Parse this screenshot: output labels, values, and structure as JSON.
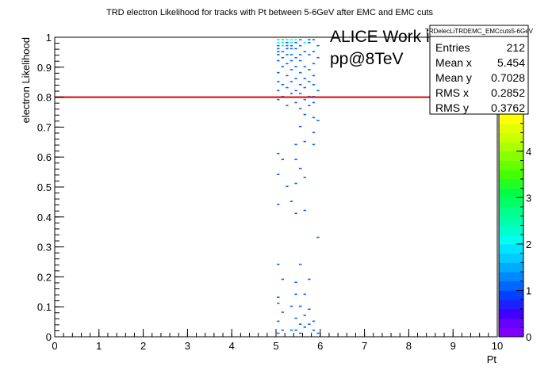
{
  "chart_data": {
    "type": "heatmap",
    "title": "TRD electron Likelihood for tracks with Pt between 5-6GeV after EMC and EMC cuts",
    "xlabel": "Pt",
    "ylabel": "electron Likelihood",
    "xlim": [
      0,
      10
    ],
    "ylim": [
      0,
      1
    ],
    "x_ticks": [
      "0",
      "1",
      "2",
      "3",
      "4",
      "5",
      "6",
      "7",
      "8",
      "9",
      "10"
    ],
    "y_ticks": [
      "0",
      "0.1",
      "0.2",
      "0.3",
      "0.4",
      "0.5",
      "0.6",
      "0.7",
      "0.8",
      "0.9",
      "1"
    ],
    "z_ticks": [
      "0",
      "1",
      "2",
      "3",
      "4"
    ],
    "zlim": [
      0,
      4.8
    ],
    "cut_line_y": 0.8,
    "cut_line_color": "#e00000",
    "annotation": {
      "line1": "ALICE Work in Progress",
      "line2": "pp@8TeV"
    },
    "stats": {
      "name": "TRDelecLiTRDEMC_EMCcuts5-6GeV",
      "rows": [
        {
          "label": "Entries",
          "value": "212"
        },
        {
          "label": "Mean x",
          "value": "5.454"
        },
        {
          "label": "Mean y",
          "value": "0.7028"
        },
        {
          "label": "RMS x",
          "value": "0.2852"
        },
        {
          "label": "RMS y",
          "value": "0.3762"
        }
      ]
    },
    "palette": [
      "#8000ff",
      "#6600ff",
      "#4000ff",
      "#2020ff",
      "#0040ff",
      "#0066ff",
      "#0088ff",
      "#00aaff",
      "#00ccff",
      "#00e5ff",
      "#00ffee",
      "#00ffcc",
      "#00ffaa",
      "#00ff88",
      "#00ff66",
      "#00ff44",
      "#22ff22",
      "#44ff00",
      "#66ff00",
      "#88ff00",
      "#aaff00",
      "#ccff00",
      "#e5ff00",
      "#ffff00"
    ],
    "cells": [
      [
        5.02,
        0.99,
        3
      ],
      [
        5.12,
        0.99,
        3
      ],
      [
        5.22,
        0.99,
        2
      ],
      [
        5.32,
        0.99,
        2
      ],
      [
        5.42,
        0.99,
        2
      ],
      [
        5.52,
        0.99,
        1
      ],
      [
        5.72,
        0.99,
        1
      ],
      [
        5.82,
        0.99,
        1
      ],
      [
        5.02,
        0.98,
        2
      ],
      [
        5.12,
        0.98,
        2
      ],
      [
        5.22,
        0.98,
        1
      ],
      [
        5.32,
        0.98,
        2
      ],
      [
        5.42,
        0.98,
        1
      ],
      [
        5.62,
        0.98,
        2
      ],
      [
        5.72,
        0.98,
        1
      ],
      [
        5.02,
        0.97,
        1
      ],
      [
        5.12,
        0.97,
        2
      ],
      [
        5.22,
        0.97,
        1
      ],
      [
        5.32,
        0.97,
        1
      ],
      [
        5.52,
        0.97,
        1
      ],
      [
        5.92,
        0.97,
        1
      ],
      [
        5.02,
        0.96,
        1
      ],
      [
        5.22,
        0.96,
        1
      ],
      [
        5.32,
        0.96,
        1
      ],
      [
        5.42,
        0.96,
        1
      ],
      [
        5.02,
        0.95,
        1
      ],
      [
        5.12,
        0.95,
        1
      ],
      [
        5.62,
        0.95,
        1
      ],
      [
        5.82,
        0.95,
        1
      ],
      [
        5.02,
        0.94,
        1
      ],
      [
        5.22,
        0.94,
        1
      ],
      [
        5.32,
        0.94,
        1
      ],
      [
        5.52,
        0.94,
        1
      ],
      [
        5.72,
        0.94,
        1
      ],
      [
        5.12,
        0.93,
        1
      ],
      [
        5.42,
        0.93,
        1
      ],
      [
        5.92,
        0.93,
        1
      ],
      [
        5.02,
        0.92,
        1
      ],
      [
        5.32,
        0.92,
        1
      ],
      [
        5.52,
        0.92,
        1
      ],
      [
        5.22,
        0.91,
        1
      ],
      [
        5.82,
        0.91,
        1
      ],
      [
        5.12,
        0.9,
        1
      ],
      [
        5.42,
        0.9,
        1
      ],
      [
        5.62,
        0.9,
        1
      ],
      [
        5.32,
        0.89,
        1
      ],
      [
        5.72,
        0.89,
        1
      ],
      [
        5.02,
        0.88,
        1
      ],
      [
        5.52,
        0.88,
        1
      ],
      [
        5.22,
        0.87,
        1
      ],
      [
        5.82,
        0.87,
        1
      ],
      [
        5.42,
        0.86,
        1
      ],
      [
        5.62,
        0.86,
        1
      ],
      [
        5.02,
        0.85,
        1
      ],
      [
        5.32,
        0.85,
        1
      ],
      [
        5.72,
        0.85,
        1
      ],
      [
        5.12,
        0.84,
        1
      ],
      [
        5.52,
        0.84,
        1
      ],
      [
        5.82,
        0.84,
        1
      ],
      [
        5.22,
        0.83,
        1
      ],
      [
        5.62,
        0.83,
        1
      ],
      [
        5.02,
        0.82,
        1
      ],
      [
        5.42,
        0.82,
        1
      ],
      [
        5.92,
        0.82,
        1
      ],
      [
        5.32,
        0.81,
        1
      ],
      [
        5.52,
        0.81,
        1
      ],
      [
        5.12,
        0.8,
        1
      ],
      [
        5.72,
        0.8,
        1
      ],
      [
        5.82,
        0.8,
        1
      ],
      [
        5.02,
        0.79,
        1
      ],
      [
        5.62,
        0.79,
        1
      ],
      [
        5.42,
        0.78,
        1
      ],
      [
        5.82,
        0.78,
        1
      ],
      [
        5.22,
        0.77,
        1
      ],
      [
        5.72,
        0.77,
        1
      ],
      [
        5.52,
        0.76,
        1
      ],
      [
        5.92,
        0.72,
        1
      ],
      [
        5.62,
        0.74,
        1
      ],
      [
        5.82,
        0.73,
        1
      ],
      [
        5.52,
        0.7,
        1
      ],
      [
        5.82,
        0.68,
        1
      ],
      [
        5.62,
        0.65,
        1
      ],
      [
        5.42,
        0.64,
        1
      ],
      [
        5.82,
        0.64,
        1
      ],
      [
        5.02,
        0.61,
        1
      ],
      [
        5.12,
        0.59,
        1
      ],
      [
        5.42,
        0.59,
        1
      ],
      [
        5.52,
        0.56,
        1
      ],
      [
        5.02,
        0.54,
        1
      ],
      [
        5.62,
        0.53,
        1
      ],
      [
        5.42,
        0.51,
        1
      ],
      [
        5.22,
        0.5,
        1
      ],
      [
        5.02,
        0.44,
        1
      ],
      [
        5.32,
        0.45,
        1
      ],
      [
        5.62,
        0.42,
        1
      ],
      [
        5.42,
        0.41,
        1
      ],
      [
        5.92,
        0.33,
        1
      ],
      [
        5.02,
        0.24,
        1
      ],
      [
        5.52,
        0.24,
        1
      ],
      [
        5.42,
        0.18,
        1
      ],
      [
        5.12,
        0.19,
        1
      ],
      [
        5.72,
        0.19,
        1
      ],
      [
        5.02,
        0.13,
        1
      ],
      [
        5.62,
        0.14,
        1
      ],
      [
        5.42,
        0.14,
        1
      ],
      [
        5.02,
        0.11,
        1
      ],
      [
        5.72,
        0.09,
        1
      ],
      [
        5.52,
        0.1,
        1
      ],
      [
        5.32,
        0.1,
        1
      ],
      [
        5.12,
        0.08,
        1
      ],
      [
        5.62,
        0.07,
        1
      ],
      [
        5.42,
        0.06,
        1
      ],
      [
        5.02,
        0.05,
        1
      ],
      [
        5.82,
        0.05,
        1
      ],
      [
        5.52,
        0.04,
        1
      ],
      [
        5.72,
        0.04,
        1
      ],
      [
        5.62,
        0.03,
        1
      ],
      [
        5.12,
        0.02,
        1
      ],
      [
        5.32,
        0.02,
        1
      ],
      [
        5.42,
        0.02,
        1
      ],
      [
        5.82,
        0.02,
        1
      ],
      [
        5.92,
        0.01,
        1
      ],
      [
        5.52,
        0.01,
        1
      ],
      [
        5.02,
        0.01,
        1
      ]
    ]
  }
}
